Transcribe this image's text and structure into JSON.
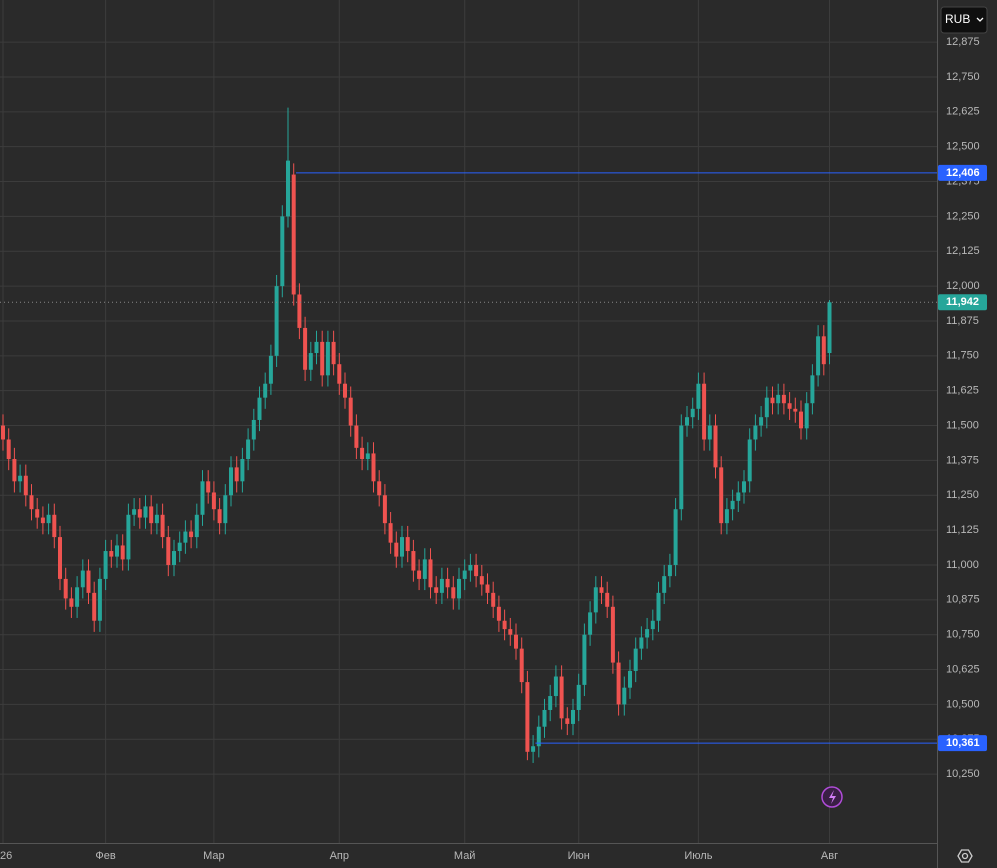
{
  "currency": "RUB",
  "chart_data": {
    "type": "candlestick",
    "categories": [
      "26",
      null,
      null,
      null,
      null,
      null,
      null,
      null,
      null,
      null,
      null,
      null,
      null,
      null,
      null,
      null,
      null,
      null,
      "Фев",
      null,
      null,
      null,
      null,
      null,
      null,
      null,
      null,
      null,
      null,
      null,
      null,
      null,
      null,
      null,
      null,
      null,
      null,
      "Мар",
      null,
      null,
      null,
      null,
      null,
      null,
      null,
      null,
      null,
      null,
      null,
      null,
      null,
      null,
      null,
      null,
      null,
      null,
      null,
      null,
      null,
      "Апр",
      null,
      null,
      null,
      null,
      null,
      null,
      null,
      null,
      null,
      null,
      null,
      null,
      null,
      null,
      null,
      null,
      null,
      null,
      null,
      null,
      null,
      "Май",
      null,
      null,
      null,
      null,
      null,
      null,
      null,
      null,
      null,
      null,
      null,
      null,
      null,
      null,
      null,
      null,
      null,
      null,
      null,
      "Июн",
      null,
      null,
      null,
      null,
      null,
      null,
      null,
      null,
      null,
      null,
      null,
      null,
      null,
      null,
      null,
      null,
      null,
      null,
      null,
      null,
      "Июль",
      null,
      null,
      null,
      null,
      null,
      null,
      null,
      null,
      null,
      null,
      null,
      null,
      null,
      null,
      null,
      null,
      null,
      null,
      null,
      null,
      null,
      null,
      "Авг"
    ],
    "open": [
      11500,
      11450,
      11380,
      11300,
      11320,
      11250,
      11200,
      11170,
      11150,
      11180,
      11100,
      10950,
      10880,
      10850,
      10920,
      10980,
      10900,
      10800,
      10950,
      11050,
      11030,
      11070,
      11020,
      11180,
      11200,
      11170,
      11210,
      11150,
      11180,
      11100,
      11000,
      11050,
      11080,
      11120,
      11100,
      11180,
      11300,
      11260,
      11200,
      11150,
      11250,
      11350,
      11300,
      11380,
      11450,
      11520,
      11600,
      11650,
      11750,
      12000,
      12250,
      12400,
      11970,
      11850,
      11700,
      11760,
      11800,
      11680,
      11800,
      11720,
      11650,
      11600,
      11500,
      11420,
      11380,
      11400,
      11300,
      11250,
      11150,
      11080,
      11030,
      11100,
      11050,
      10980,
      10950,
      11020,
      10920,
      10900,
      10950,
      10920,
      10880,
      10950,
      10980,
      11000,
      10960,
      10930,
      10900,
      10850,
      10800,
      10770,
      10750,
      10700,
      10580,
      10330,
      10350,
      10420,
      10480,
      10530,
      10600,
      10450,
      10430,
      10480,
      10570,
      10750,
      10830,
      10920,
      10900,
      10850,
      10650,
      10500,
      10560,
      10620,
      10700,
      10740,
      10770,
      10800,
      10900,
      10960,
      11000,
      11200,
      11500,
      11530,
      11560,
      11650,
      11450,
      11500,
      11350,
      11150,
      11200,
      11230,
      11260,
      11300,
      11450,
      11500,
      11530,
      11600,
      11580,
      11610,
      11580,
      11560,
      11550,
      11490,
      11580,
      11680,
      11820,
      11760
    ],
    "high": [
      11540,
      11490,
      11420,
      11360,
      11360,
      11290,
      11240,
      11210,
      11220,
      11220,
      11140,
      10990,
      10920,
      10960,
      11020,
      11020,
      10940,
      10990,
      11090,
      11090,
      11110,
      11110,
      11220,
      11240,
      11240,
      11250,
      11250,
      11220,
      11220,
      11140,
      11090,
      11120,
      11160,
      11160,
      11220,
      11340,
      11340,
      11300,
      11240,
      11290,
      11390,
      11390,
      11420,
      11490,
      11560,
      11640,
      11690,
      11790,
      12040,
      12290,
      12640,
      12440,
      12010,
      11890,
      11800,
      11840,
      11840,
      11840,
      11840,
      11760,
      11690,
      11640,
      11540,
      11460,
      11440,
      11440,
      11340,
      11290,
      11190,
      11120,
      11140,
      11140,
      11090,
      11020,
      11060,
      11060,
      10960,
      10990,
      10990,
      10960,
      10990,
      11020,
      11040,
      11040,
      11000,
      10970,
      10940,
      10890,
      10840,
      10810,
      10790,
      10740,
      10620,
      10390,
      10460,
      10520,
      10570,
      10640,
      10640,
      10490,
      10520,
      10610,
      10790,
      10870,
      10960,
      10960,
      10940,
      10890,
      10690,
      10600,
      10660,
      10740,
      10780,
      10810,
      10840,
      10940,
      11000,
      11040,
      11240,
      11540,
      11570,
      11600,
      11690,
      11690,
      11540,
      11540,
      11390,
      11240,
      11270,
      11300,
      11340,
      11490,
      11540,
      11570,
      11640,
      11640,
      11650,
      11650,
      11620,
      11600,
      11590,
      11620,
      11720,
      11860,
      11860,
      11950
    ],
    "low": [
      11410,
      11340,
      11260,
      11260,
      11210,
      11160,
      11130,
      11110,
      11110,
      11060,
      10910,
      10840,
      10810,
      10810,
      10880,
      10860,
      10760,
      10760,
      10910,
      10990,
      10990,
      10980,
      10980,
      11140,
      11130,
      11130,
      11110,
      11110,
      11060,
      10960,
      10960,
      11010,
      11040,
      11060,
      11060,
      11140,
      11220,
      11160,
      11110,
      11110,
      11210,
      11260,
      11260,
      11340,
      11410,
      11480,
      11560,
      11610,
      11710,
      11960,
      12210,
      11930,
      11810,
      11660,
      11660,
      11720,
      11640,
      11640,
      11680,
      11610,
      11560,
      11460,
      11380,
      11340,
      11340,
      11260,
      11210,
      11110,
      11040,
      10990,
      10990,
      11010,
      10940,
      10910,
      10910,
      10880,
      10860,
      10860,
      10880,
      10840,
      10840,
      10910,
      10940,
      10920,
      10890,
      10860,
      10810,
      10760,
      10730,
      10710,
      10660,
      10540,
      10300,
      10290,
      10310,
      10380,
      10440,
      10490,
      10410,
      10390,
      10390,
      10440,
      10530,
      10710,
      10790,
      10860,
      10810,
      10610,
      10460,
      10460,
      10520,
      10580,
      10660,
      10700,
      10730,
      10760,
      10860,
      10920,
      10960,
      11160,
      11460,
      11490,
      11520,
      11410,
      11410,
      11310,
      11110,
      11110,
      11160,
      11190,
      11220,
      11260,
      11410,
      11460,
      11490,
      11540,
      11540,
      11540,
      11520,
      11510,
      11450,
      11450,
      11540,
      11640,
      11680,
      11720
    ],
    "close": [
      11450,
      11380,
      11300,
      11320,
      11250,
      11200,
      11170,
      11150,
      11180,
      11100,
      10950,
      10880,
      10850,
      10920,
      10980,
      10900,
      10800,
      10950,
      11050,
      11030,
      11070,
      11020,
      11180,
      11200,
      11170,
      11210,
      11150,
      11180,
      11100,
      11000,
      11050,
      11080,
      11120,
      11100,
      11180,
      11300,
      11260,
      11200,
      11150,
      11250,
      11350,
      11300,
      11380,
      11450,
      11520,
      11600,
      11650,
      11750,
      12000,
      12250,
      12450,
      11970,
      11850,
      11700,
      11760,
      11800,
      11680,
      11800,
      11720,
      11650,
      11600,
      11500,
      11420,
      11380,
      11400,
      11300,
      11250,
      11150,
      11080,
      11030,
      11100,
      11050,
      10980,
      10950,
      11020,
      10920,
      10900,
      10950,
      10920,
      10880,
      10950,
      10980,
      11000,
      10960,
      10930,
      10900,
      10850,
      10800,
      10770,
      10750,
      10700,
      10580,
      10330,
      10350,
      10420,
      10480,
      10530,
      10600,
      10450,
      10430,
      10480,
      10570,
      10750,
      10830,
      10920,
      10900,
      10850,
      10650,
      10500,
      10560,
      10620,
      10700,
      10740,
      10770,
      10800,
      10900,
      10960,
      11000,
      11200,
      11500,
      11530,
      11560,
      11650,
      11450,
      11500,
      11350,
      11150,
      11200,
      11230,
      11260,
      11300,
      11450,
      11500,
      11530,
      11600,
      11580,
      11610,
      11580,
      11560,
      11550,
      11490,
      11580,
      11680,
      11820,
      11720,
      11942
    ],
    "up_color": "#26a69a",
    "down_color": "#ef5350",
    "ylim": [
      10003,
      13026
    ],
    "yticks": [
      {
        "value": 12875,
        "label": "12,875"
      },
      {
        "value": 12750,
        "label": "12,750"
      },
      {
        "value": 12625,
        "label": "12,625"
      },
      {
        "value": 12500,
        "label": "12,500"
      },
      {
        "value": 12375,
        "label": "12,375"
      },
      {
        "value": 12250,
        "label": "12,250"
      },
      {
        "value": 12125,
        "label": "12,125"
      },
      {
        "value": 12000,
        "label": "12,000"
      },
      {
        "value": 11875,
        "label": "11,875"
      },
      {
        "value": 11750,
        "label": "11,750"
      },
      {
        "value": 11625,
        "label": "11,625"
      },
      {
        "value": 11500,
        "label": "11,500"
      },
      {
        "value": 11375,
        "label": "11,375"
      },
      {
        "value": 11250,
        "label": "11,250"
      },
      {
        "value": 11125,
        "label": "11,125"
      },
      {
        "value": 11000,
        "label": "11,000"
      },
      {
        "value": 10875,
        "label": "10,875"
      },
      {
        "value": 10750,
        "label": "10,750"
      },
      {
        "value": 10625,
        "label": "10,625"
      },
      {
        "value": 10500,
        "label": "10,500"
      },
      {
        "value": 10375,
        "label": "10,375"
      },
      {
        "value": 10250,
        "label": "10,250"
      }
    ],
    "grid": true,
    "price_lines": [
      {
        "value": 12406,
        "label": "12,406",
        "color": "#2962ff"
      },
      {
        "value": 10361,
        "label": "10,361",
        "color": "#2962ff"
      }
    ],
    "last_label": "11,942",
    "last_color": "#26a69a"
  }
}
